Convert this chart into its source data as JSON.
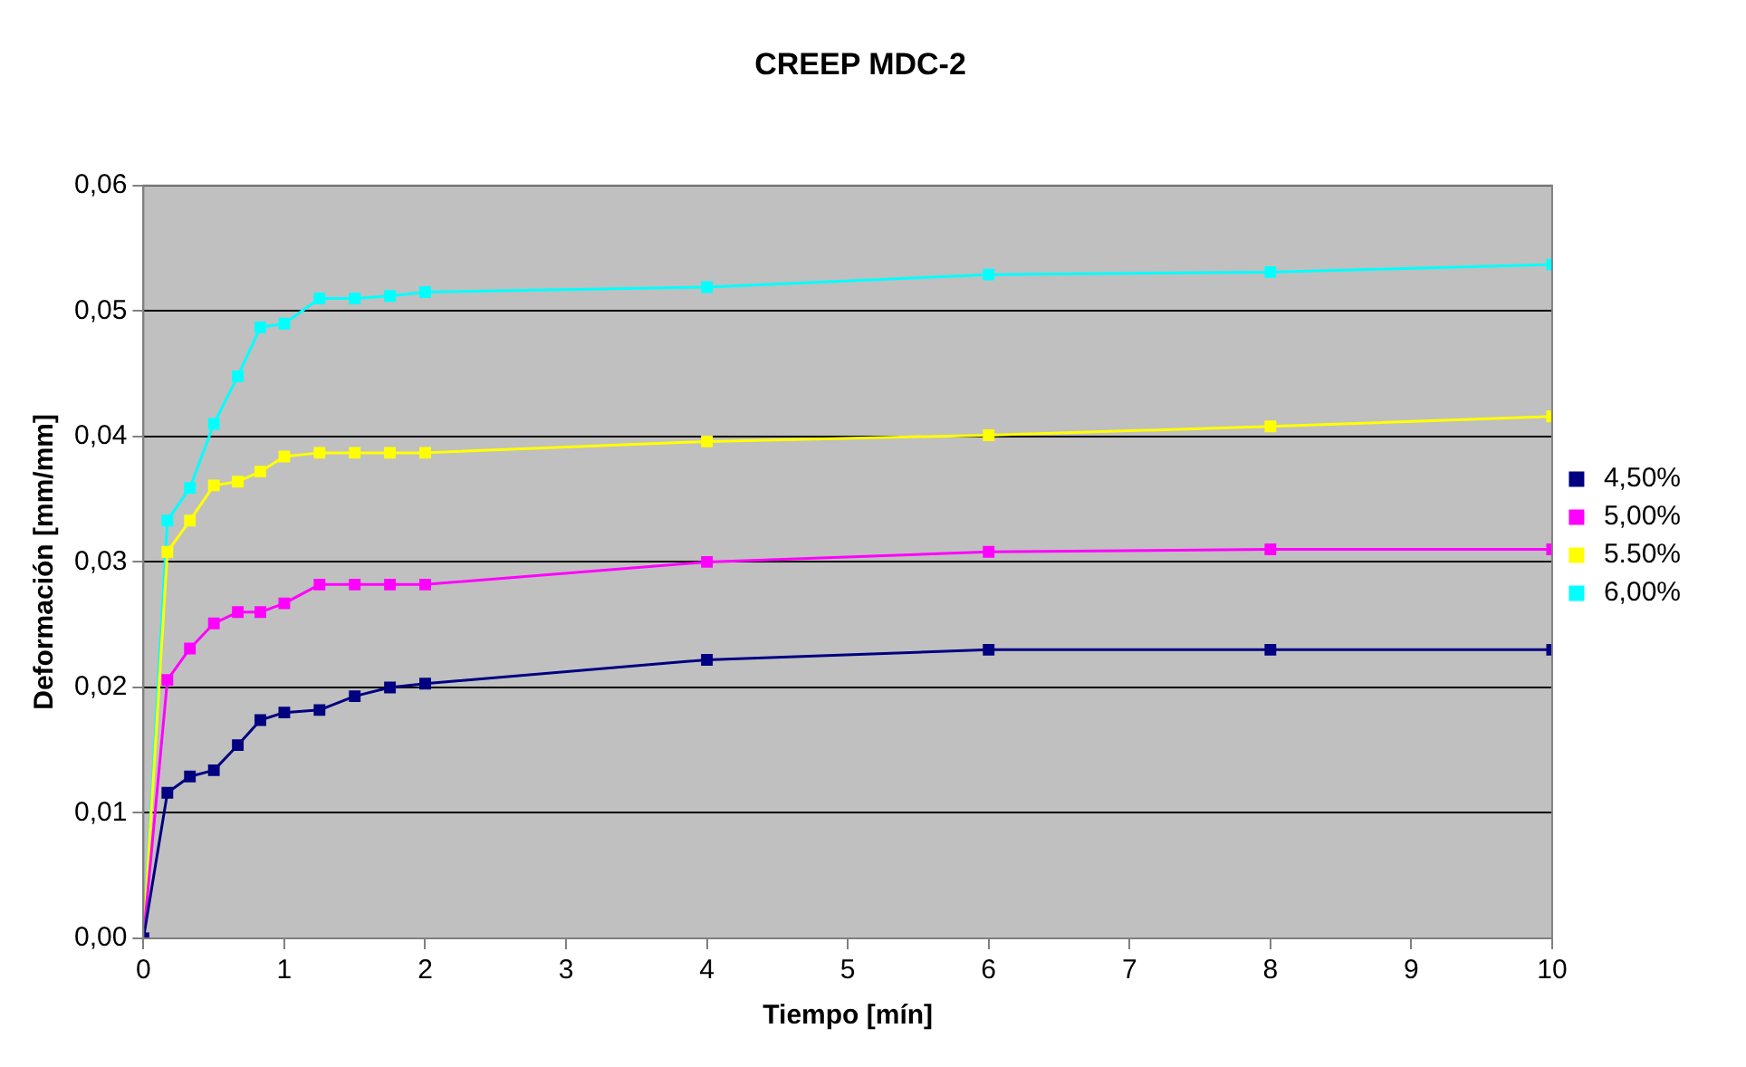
{
  "chart_data": {
    "type": "line",
    "title": "CREEP MDC-2",
    "xlabel": "Tiempo [mín]",
    "ylabel": "Deformación [mm/mm]",
    "x": [
      0,
      0.17,
      0.33,
      0.5,
      0.67,
      0.83,
      1,
      1.25,
      1.5,
      1.75,
      2,
      4,
      6,
      8,
      10
    ],
    "series": [
      {
        "name": "4,50%",
        "color": "#000080",
        "values": [
          0,
          0.0116,
          0.0129,
          0.0134,
          0.0154,
          0.0174,
          0.018,
          0.0182,
          0.0193,
          0.02,
          0.0203,
          0.0222,
          0.023,
          0.023,
          0.023
        ]
      },
      {
        "name": "5,00%",
        "color": "#ff00ff",
        "values": [
          0,
          0.0206,
          0.0231,
          0.0251,
          0.026,
          0.026,
          0.0267,
          0.0282,
          0.0282,
          0.0282,
          0.0282,
          0.03,
          0.0308,
          0.031,
          0.031
        ]
      },
      {
        "name": "5.50%",
        "color": "#ffff00",
        "values": [
          0,
          0.0308,
          0.0333,
          0.0361,
          0.0364,
          0.0372,
          0.0384,
          0.0387,
          0.0387,
          0.0387,
          0.0387,
          0.0396,
          0.0401,
          0.0408,
          0.0416
        ]
      },
      {
        "name": "6,00%",
        "color": "#00ffff",
        "values": [
          0,
          0.0333,
          0.0359,
          0.041,
          0.0448,
          0.0487,
          0.049,
          0.051,
          0.051,
          0.0512,
          0.0515,
          0.0519,
          0.0529,
          0.0531,
          0.0537
        ]
      }
    ],
    "xlim": [
      0,
      10
    ],
    "xticks": [
      0,
      1,
      2,
      3,
      4,
      5,
      6,
      7,
      8,
      9,
      10
    ],
    "ylim": [
      0,
      0.06
    ],
    "yticks": [
      {
        "value": 0,
        "label": "0,00"
      },
      {
        "value": 0.01,
        "label": "0,01"
      },
      {
        "value": 0.02,
        "label": "0,02"
      },
      {
        "value": 0.03,
        "label": "0,03"
      },
      {
        "value": 0.04,
        "label": "0,04"
      },
      {
        "value": 0.05,
        "label": "0,05"
      },
      {
        "value": 0.06,
        "label": "0,06"
      }
    ],
    "grid": "y",
    "legend": "right",
    "marker": "square",
    "line_style": "solid"
  }
}
